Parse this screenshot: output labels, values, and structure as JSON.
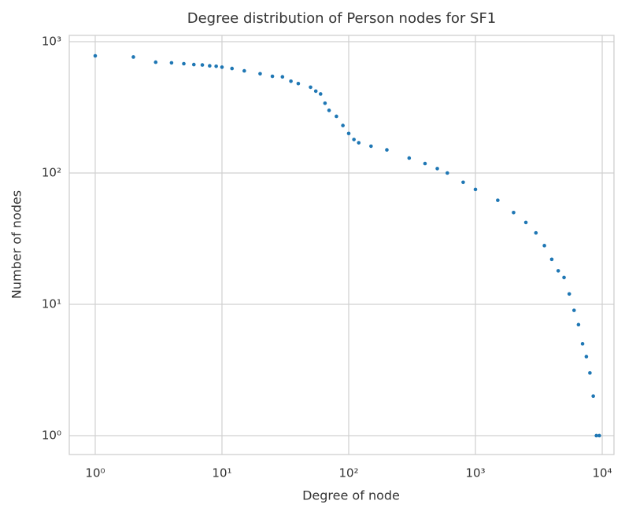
{
  "chart_data": {
    "type": "scatter",
    "title": "Degree distribution of Person nodes for SF1",
    "xlabel": "Degree of node",
    "ylabel": "Number of nodes",
    "xscale": "log",
    "yscale": "log",
    "grid": true,
    "color": "#1f77b4",
    "xlim": [
      0.624,
      12390
    ],
    "ylim": [
      0.718,
      1117
    ],
    "xticks": [
      {
        "value": 1,
        "label": "10⁰"
      },
      {
        "value": 10,
        "label": "10¹"
      },
      {
        "value": 100,
        "label": "10²"
      },
      {
        "value": 1000,
        "label": "10³"
      },
      {
        "value": 10000,
        "label": "10⁴"
      }
    ],
    "yticks": [
      {
        "value": 1,
        "label": "10⁰"
      },
      {
        "value": 10,
        "label": "10¹"
      },
      {
        "value": 100,
        "label": "10²"
      },
      {
        "value": 1000,
        "label": "10³"
      }
    ],
    "x": [
      1,
      2,
      3,
      4,
      5,
      6,
      7,
      8,
      9,
      10,
      12,
      15,
      20,
      25,
      30,
      35,
      40,
      50,
      55,
      60,
      65,
      70,
      80,
      90,
      100,
      110,
      120,
      150,
      200,
      300,
      400,
      500,
      600,
      800,
      1000,
      1500,
      2000,
      2500,
      3000,
      3500,
      4000,
      4500,
      5000,
      5500,
      6000,
      6500,
      7000,
      7500,
      8000,
      8500,
      9000,
      9500
    ],
    "values": [
      780,
      765,
      698,
      690,
      680,
      670,
      665,
      655,
      650,
      640,
      625,
      600,
      570,
      545,
      540,
      500,
      480,
      450,
      420,
      400,
      340,
      300,
      270,
      230,
      200,
      180,
      170,
      160,
      150,
      130,
      118,
      108,
      100,
      85,
      75,
      62,
      50,
      42,
      35,
      28,
      22,
      18,
      16,
      12,
      9,
      7,
      5,
      4,
      3,
      2,
      1,
      1
    ]
  }
}
